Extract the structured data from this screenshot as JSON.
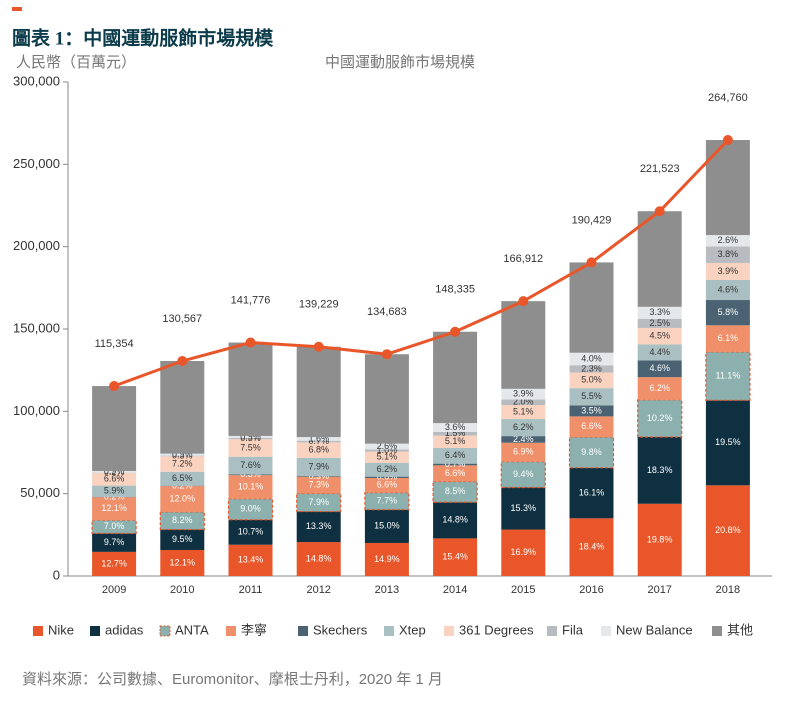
{
  "chart_data": {
    "type": "bar",
    "stacked": true,
    "figure_label": "圖表 1：中國運動服飾市場規模",
    "title": "中國運動服飾市場規模",
    "y_label": "人民幣（百萬元）",
    "source": "資料來源：公司數據、Euromonitor、摩根士丹利，2020 年 1 月",
    "categories": [
      "2009",
      "2010",
      "2011",
      "2012",
      "2013",
      "2014",
      "2015",
      "2016",
      "2017",
      "2018"
    ],
    "ylim": [
      0,
      300000
    ],
    "yticks": [
      0,
      {
        "value": 50000,
        "label": "50,000"
      },
      {
        "value": 100000,
        "label": "100,000"
      },
      {
        "value": 150000,
        "label": "150,000"
      },
      {
        "value": 200000,
        "label": "200,000"
      },
      {
        "value": 250000,
        "label": "250,000"
      },
      {
        "value": 300000,
        "label": "300,000"
      }
    ],
    "total": {
      "type": "line",
      "color": "#e8562a",
      "values": [
        115354,
        130567,
        141776,
        139229,
        134683,
        148335,
        166912,
        190429,
        221523,
        264760
      ],
      "value_labels": [
        "115,354",
        "130,567",
        "141,776",
        "139,229",
        "134,683",
        "148,335",
        "166,912",
        "190,429",
        "221,523",
        "264,760"
      ]
    },
    "series": [
      {
        "name": "Nike",
        "color": "#e8562a",
        "values": [
          12.7,
          12.1,
          13.4,
          14.8,
          14.9,
          15.4,
          16.9,
          18.4,
          19.8,
          20.8
        ],
        "value_labels": [
          "12.7%",
          "12.1%",
          "13.4%",
          "14.8%",
          "14.9%",
          "15.4%",
          "16.9%",
          "18.4%",
          "19.8%",
          "20.8%"
        ]
      },
      {
        "name": "adidas",
        "color": "#0e3040",
        "values": [
          9.7,
          9.5,
          10.7,
          13.3,
          15.0,
          14.8,
          15.3,
          16.1,
          18.3,
          19.5
        ],
        "value_labels": [
          "9.7%",
          "9.5%",
          "10.7%",
          "13.3%",
          "15.0%",
          "14.8%",
          "15.3%",
          "16.1%",
          "18.3%",
          "19.5%"
        ]
      },
      {
        "name": "ANTA",
        "color": "#8bb0ae",
        "dashed_border": "#e8562a",
        "values": [
          7.0,
          8.2,
          9.0,
          7.9,
          7.7,
          8.5,
          9.4,
          9.8,
          10.2,
          11.1
        ],
        "value_labels": [
          "7.0%",
          "8.2%",
          "9.0%",
          "7.9%",
          "7.7%",
          "8.5%",
          "9.4%",
          "9.8%",
          "10.2%",
          "11.1%"
        ]
      },
      {
        "name": "李寧",
        "color": "#f0906a",
        "values": [
          12.1,
          12.0,
          10.1,
          7.3,
          6.6,
          6.6,
          6.9,
          6.6,
          6.2,
          6.1
        ],
        "value_labels": [
          "12.1%",
          "12.0%",
          "10.1%",
          "7.3%",
          "6.6%",
          "6.6%",
          "6.9%",
          "6.6%",
          "6.2%",
          "6.1%"
        ]
      },
      {
        "name": "Skechers",
        "color": "#4a6272",
        "values": [
          0.2,
          0.2,
          0.3,
          0.3,
          0.6,
          0.7,
          2.4,
          3.5,
          4.6,
          5.8
        ],
        "value_labels": [
          "0.2%",
          "0.2%",
          "0.3%",
          "0.3%",
          "0.6%",
          "0.7%",
          "2.4%",
          "3.5%",
          "4.6%",
          "5.8%"
        ]
      },
      {
        "name": "Xtep",
        "color": "#a9bfc2",
        "values": [
          5.9,
          6.5,
          7.6,
          7.9,
          6.2,
          6.4,
          6.2,
          5.5,
          4.4,
          4.6
        ],
        "value_labels": [
          "5.9%",
          "6.5%",
          "7.6%",
          "7.9%",
          "6.2%",
          "6.4%",
          "6.2%",
          "5.5%",
          "4.4%",
          "4.6%"
        ]
      },
      {
        "name": "361 Degrees",
        "color": "#fad3c0",
        "values": [
          6.6,
          7.2,
          7.5,
          6.8,
          5.1,
          5.1,
          5.1,
          5.0,
          4.5,
          3.9
        ],
        "value_labels": [
          "6.6%",
          "7.2%",
          "7.5%",
          "6.8%",
          "5.1%",
          "5.1%",
          "5.1%",
          "5.0%",
          "4.5%",
          "3.9%"
        ]
      },
      {
        "name": "Fila",
        "color": "#b8bcc0",
        "values": [
          0.2,
          0.3,
          0.5,
          0.7,
          1.0,
          1.5,
          2.0,
          2.3,
          2.5,
          3.8
        ],
        "value_labels": [
          "0.2%",
          "0.3%",
          "0.5%",
          "0.7%",
          "1.0%",
          "1.5%",
          "2.0%",
          "2.3%",
          "2.5%",
          "3.8%"
        ]
      },
      {
        "name": "New Balance",
        "color": "#e4e8ea",
        "values": [
          0.9,
          0.9,
          0.9,
          1.6,
          2.6,
          3.6,
          3.9,
          4.0,
          3.3,
          2.6
        ],
        "value_labels": [
          "0.9%",
          "0.9%",
          "0.9%",
          "1.6%",
          "2.6%",
          "3.6%",
          "3.9%",
          "4.0%",
          "3.3%",
          "2.6%"
        ]
      },
      {
        "name": "其他",
        "color": "#8e8e8e",
        "values": [
          44.7,
          43.1,
          40.0,
          39.4,
          40.3,
          37.4,
          31.9,
          28.8,
          26.2,
          21.8
        ]
      }
    ]
  }
}
